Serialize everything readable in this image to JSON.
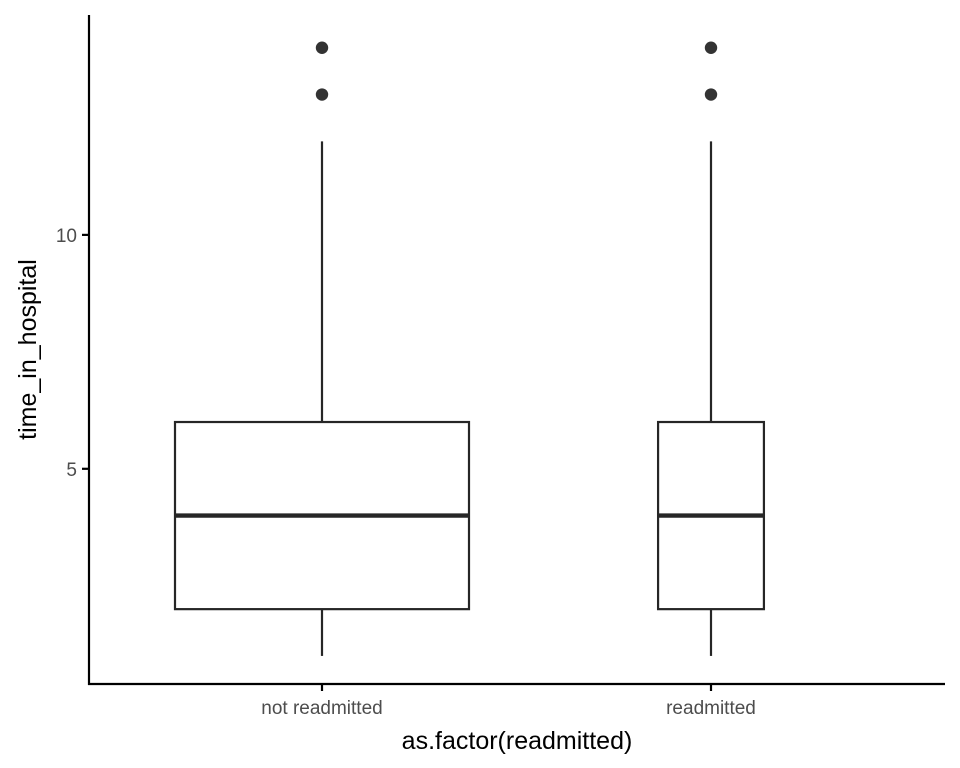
{
  "chart_data": {
    "type": "box",
    "title": "",
    "xlabel": "as.factor(readmitted)",
    "ylabel": "time_in_hospital",
    "categories": [
      "not readmitted",
      "readmitted"
    ],
    "yticks": [
      5,
      10
    ],
    "ylim": [
      0.4,
      14.7
    ],
    "grid": false,
    "legend": "none",
    "boxes": [
      {
        "category": "not readmitted",
        "whisker_low": 1,
        "q1": 2,
        "median": 4,
        "q3": 6,
        "whisker_high": 12,
        "outliers": [
          13,
          14
        ],
        "relative_width": 1.0
      },
      {
        "category": "readmitted",
        "whisker_low": 1,
        "q1": 2,
        "median": 4,
        "q3": 6,
        "whisker_high": 12,
        "outliers": [
          13,
          14
        ],
        "relative_width": 0.36
      }
    ],
    "colors": {
      "line": "#262626",
      "point": "#333333",
      "axis": "#000000",
      "tick_text": "#4d4d4d",
      "fill": "#ffffff"
    }
  }
}
